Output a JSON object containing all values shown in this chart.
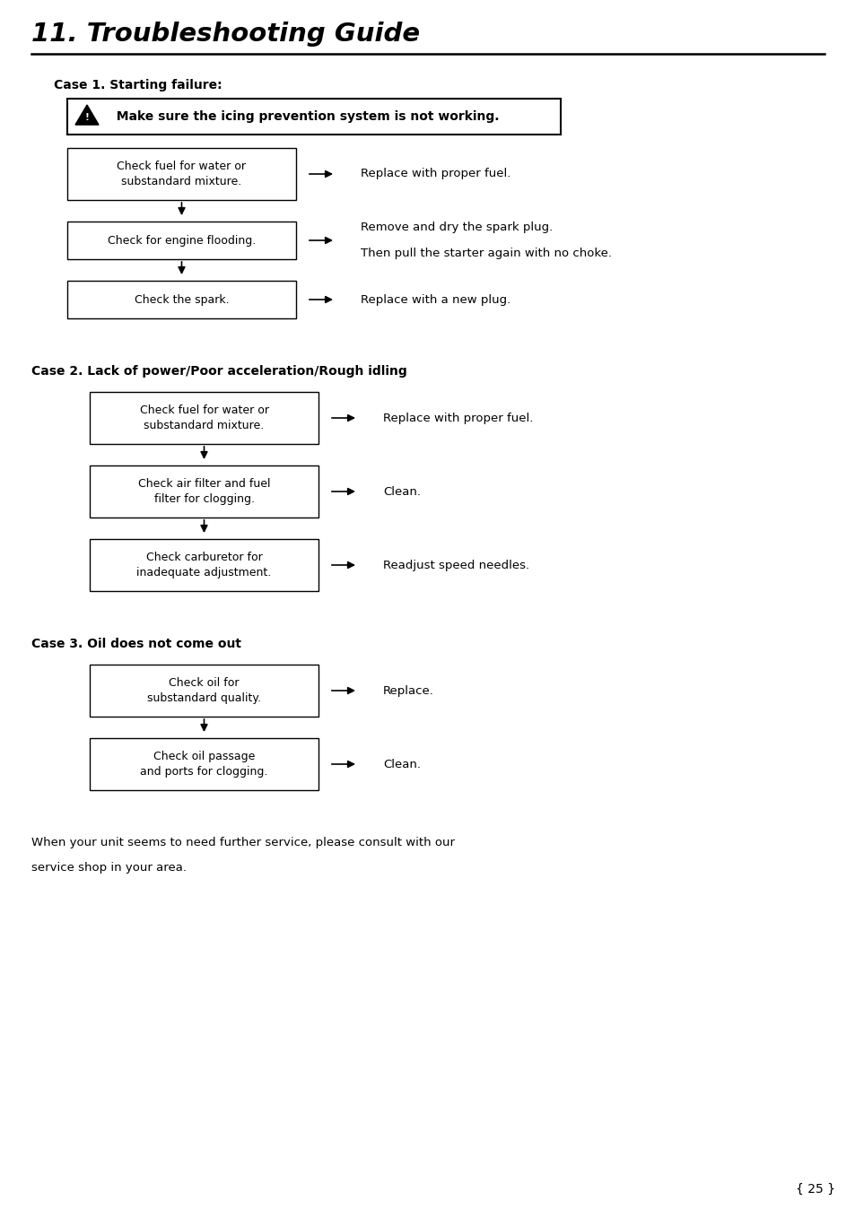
{
  "title": "11. Troubleshooting Guide",
  "bg_color": "#ffffff",
  "page_number": "{ 25 }",
  "cases": [
    {
      "label": "Case 1. Starting failure:",
      "warning": "  Make sure the icing prevention system is not working.",
      "steps": [
        {
          "box": "Check fuel for water or\nsubstandard mixture.",
          "action": "Replace with proper fuel.",
          "action2": null
        },
        {
          "box": "Check for engine flooding.",
          "action": "Remove and dry the spark plug.",
          "action2": "Then pull the starter again with no choke."
        },
        {
          "box": "Check the spark.",
          "action": "Replace with a new plug.",
          "action2": null
        }
      ]
    },
    {
      "label": "Case 2. Lack of power/Poor acceleration/Rough idling",
      "warning": null,
      "steps": [
        {
          "box": "Check fuel for water or\nsubstandard mixture.",
          "action": "Replace with proper fuel.",
          "action2": null
        },
        {
          "box": "Check air filter and fuel\nfilter for clogging.",
          "action": "Clean.",
          "action2": null
        },
        {
          "box": "Check carburetor for\ninadequate adjustment.",
          "action": "Readjust speed needles.",
          "action2": null
        }
      ]
    },
    {
      "label": "Case 3. Oil does not come out",
      "warning": null,
      "steps": [
        {
          "box": "Check oil for\nsubstandard quality.",
          "action": "Replace.",
          "action2": null
        },
        {
          "box": "Check oil passage\nand ports for clogging.",
          "action": "Clean.",
          "action2": null
        }
      ]
    }
  ],
  "footer_text": "When your unit seems to need further service, please consult with our\nservice shop in your area."
}
